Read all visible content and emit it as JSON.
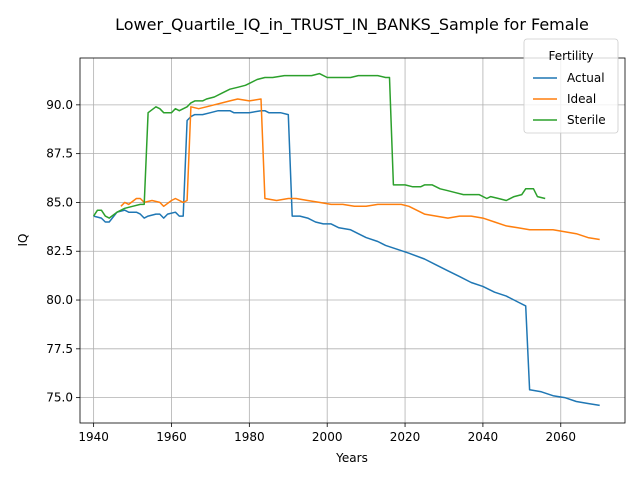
{
  "chart_data": {
    "type": "line",
    "title": "Lower_Quartile_IQ_in_TRUST_IN_BANKS_Sample for Female",
    "xlabel": "Years",
    "ylabel": "IQ",
    "xlim": [
      1936.5,
      2076.5
    ],
    "ylim": [
      73.7,
      92.4
    ],
    "xticks": [
      1940,
      1960,
      1980,
      2000,
      2020,
      2040,
      2060
    ],
    "yticks": [
      75.0,
      77.5,
      80.0,
      82.5,
      85.0,
      87.5,
      90.0
    ],
    "ytick_labels": [
      "75.0",
      "77.5",
      "80.0",
      "82.5",
      "85.0",
      "87.5",
      "90.0"
    ],
    "grid": true,
    "legend": {
      "title": "Fertility",
      "position": "top-right"
    },
    "series": [
      {
        "name": "Actual",
        "color": "#1f77b4",
        "points": [
          [
            1940,
            84.3
          ],
          [
            1942,
            84.2
          ],
          [
            1943,
            84.0
          ],
          [
            1944,
            84.0
          ],
          [
            1946,
            84.5
          ],
          [
            1948,
            84.6
          ],
          [
            1949,
            84.5
          ],
          [
            1951,
            84.5
          ],
          [
            1952,
            84.4
          ],
          [
            1953,
            84.2
          ],
          [
            1954,
            84.3
          ],
          [
            1956,
            84.4
          ],
          [
            1957,
            84.4
          ],
          [
            1958,
            84.2
          ],
          [
            1959,
            84.4
          ],
          [
            1961,
            84.5
          ],
          [
            1962,
            84.3
          ],
          [
            1963,
            84.3
          ],
          [
            1964,
            89.2
          ],
          [
            1965,
            89.4
          ],
          [
            1966,
            89.5
          ],
          [
            1968,
            89.5
          ],
          [
            1970,
            89.6
          ],
          [
            1972,
            89.7
          ],
          [
            1975,
            89.7
          ],
          [
            1976,
            89.6
          ],
          [
            1980,
            89.6
          ],
          [
            1983,
            89.7
          ],
          [
            1984,
            89.7
          ],
          [
            1985,
            89.6
          ],
          [
            1988,
            89.6
          ],
          [
            1990,
            89.5
          ],
          [
            1991,
            84.3
          ],
          [
            1993,
            84.3
          ],
          [
            1995,
            84.2
          ],
          [
            1997,
            84.0
          ],
          [
            1999,
            83.9
          ],
          [
            2001,
            83.9
          ],
          [
            2003,
            83.7
          ],
          [
            2006,
            83.6
          ],
          [
            2008,
            83.4
          ],
          [
            2010,
            83.2
          ],
          [
            2013,
            83.0
          ],
          [
            2015,
            82.8
          ],
          [
            2018,
            82.6
          ],
          [
            2021,
            82.4
          ],
          [
            2025,
            82.1
          ],
          [
            2028,
            81.8
          ],
          [
            2031,
            81.5
          ],
          [
            2034,
            81.2
          ],
          [
            2037,
            80.9
          ],
          [
            2040,
            80.7
          ],
          [
            2043,
            80.4
          ],
          [
            2046,
            80.2
          ],
          [
            2049,
            79.9
          ],
          [
            2051,
            79.7
          ],
          [
            2052,
            75.4
          ],
          [
            2055,
            75.3
          ],
          [
            2058,
            75.1
          ],
          [
            2061,
            75.0
          ],
          [
            2064,
            74.8
          ],
          [
            2067,
            74.7
          ],
          [
            2070,
            74.6
          ]
        ]
      },
      {
        "name": "Ideal",
        "color": "#ff7f0e",
        "points": [
          [
            1947,
            84.8
          ],
          [
            1948,
            85.0
          ],
          [
            1949,
            84.9
          ],
          [
            1951,
            85.2
          ],
          [
            1952,
            85.2
          ],
          [
            1953,
            85.0
          ],
          [
            1955,
            85.1
          ],
          [
            1957,
            85.0
          ],
          [
            1958,
            84.8
          ],
          [
            1960,
            85.1
          ],
          [
            1961,
            85.2
          ],
          [
            1963,
            85.0
          ],
          [
            1964,
            85.1
          ],
          [
            1965,
            89.9
          ],
          [
            1967,
            89.8
          ],
          [
            1969,
            89.9
          ],
          [
            1971,
            90.0
          ],
          [
            1973,
            90.1
          ],
          [
            1975,
            90.2
          ],
          [
            1977,
            90.3
          ],
          [
            1980,
            90.2
          ],
          [
            1983,
            90.3
          ],
          [
            1984,
            85.2
          ],
          [
            1987,
            85.1
          ],
          [
            1990,
            85.2
          ],
          [
            1992,
            85.2
          ],
          [
            1995,
            85.1
          ],
          [
            1998,
            85.0
          ],
          [
            2001,
            84.9
          ],
          [
            2004,
            84.9
          ],
          [
            2007,
            84.8
          ],
          [
            2010,
            84.8
          ],
          [
            2013,
            84.9
          ],
          [
            2016,
            84.9
          ],
          [
            2019,
            84.9
          ],
          [
            2021,
            84.8
          ],
          [
            2023,
            84.6
          ],
          [
            2025,
            84.4
          ],
          [
            2028,
            84.3
          ],
          [
            2031,
            84.2
          ],
          [
            2034,
            84.3
          ],
          [
            2037,
            84.3
          ],
          [
            2040,
            84.2
          ],
          [
            2043,
            84.0
          ],
          [
            2046,
            83.8
          ],
          [
            2049,
            83.7
          ],
          [
            2052,
            83.6
          ],
          [
            2055,
            83.6
          ],
          [
            2058,
            83.6
          ],
          [
            2061,
            83.5
          ],
          [
            2064,
            83.4
          ],
          [
            2067,
            83.2
          ],
          [
            2070,
            83.1
          ]
        ]
      },
      {
        "name": "Sterile",
        "color": "#2ca02c",
        "points": [
          [
            1940,
            84.3
          ],
          [
            1941,
            84.6
          ],
          [
            1942,
            84.6
          ],
          [
            1943,
            84.3
          ],
          [
            1944,
            84.2
          ],
          [
            1946,
            84.5
          ],
          [
            1948,
            84.7
          ],
          [
            1950,
            84.8
          ],
          [
            1952,
            84.9
          ],
          [
            1953,
            84.9
          ],
          [
            1954,
            89.6
          ],
          [
            1956,
            89.9
          ],
          [
            1957,
            89.8
          ],
          [
            1958,
            89.6
          ],
          [
            1960,
            89.6
          ],
          [
            1961,
            89.8
          ],
          [
            1962,
            89.7
          ],
          [
            1964,
            89.9
          ],
          [
            1965,
            90.1
          ],
          [
            1966,
            90.2
          ],
          [
            1968,
            90.2
          ],
          [
            1969,
            90.3
          ],
          [
            1971,
            90.4
          ],
          [
            1973,
            90.6
          ],
          [
            1975,
            90.8
          ],
          [
            1977,
            90.9
          ],
          [
            1979,
            91.0
          ],
          [
            1980,
            91.1
          ],
          [
            1982,
            91.3
          ],
          [
            1984,
            91.4
          ],
          [
            1986,
            91.4
          ],
          [
            1989,
            91.5
          ],
          [
            1991,
            91.5
          ],
          [
            1993,
            91.5
          ],
          [
            1996,
            91.5
          ],
          [
            1998,
            91.6
          ],
          [
            2000,
            91.4
          ],
          [
            2003,
            91.4
          ],
          [
            2006,
            91.4
          ],
          [
            2008,
            91.5
          ],
          [
            2010,
            91.5
          ],
          [
            2013,
            91.5
          ],
          [
            2015,
            91.4
          ],
          [
            2016,
            91.4
          ],
          [
            2017,
            85.9
          ],
          [
            2020,
            85.9
          ],
          [
            2022,
            85.8
          ],
          [
            2024,
            85.8
          ],
          [
            2025,
            85.9
          ],
          [
            2027,
            85.9
          ],
          [
            2029,
            85.7
          ],
          [
            2031,
            85.6
          ],
          [
            2033,
            85.5
          ],
          [
            2035,
            85.4
          ],
          [
            2037,
            85.4
          ],
          [
            2039,
            85.4
          ],
          [
            2041,
            85.2
          ],
          [
            2042,
            85.3
          ],
          [
            2044,
            85.2
          ],
          [
            2046,
            85.1
          ],
          [
            2048,
            85.3
          ],
          [
            2050,
            85.4
          ],
          [
            2051,
            85.7
          ],
          [
            2053,
            85.7
          ],
          [
            2054,
            85.3
          ],
          [
            2056,
            85.2
          ]
        ]
      }
    ]
  }
}
